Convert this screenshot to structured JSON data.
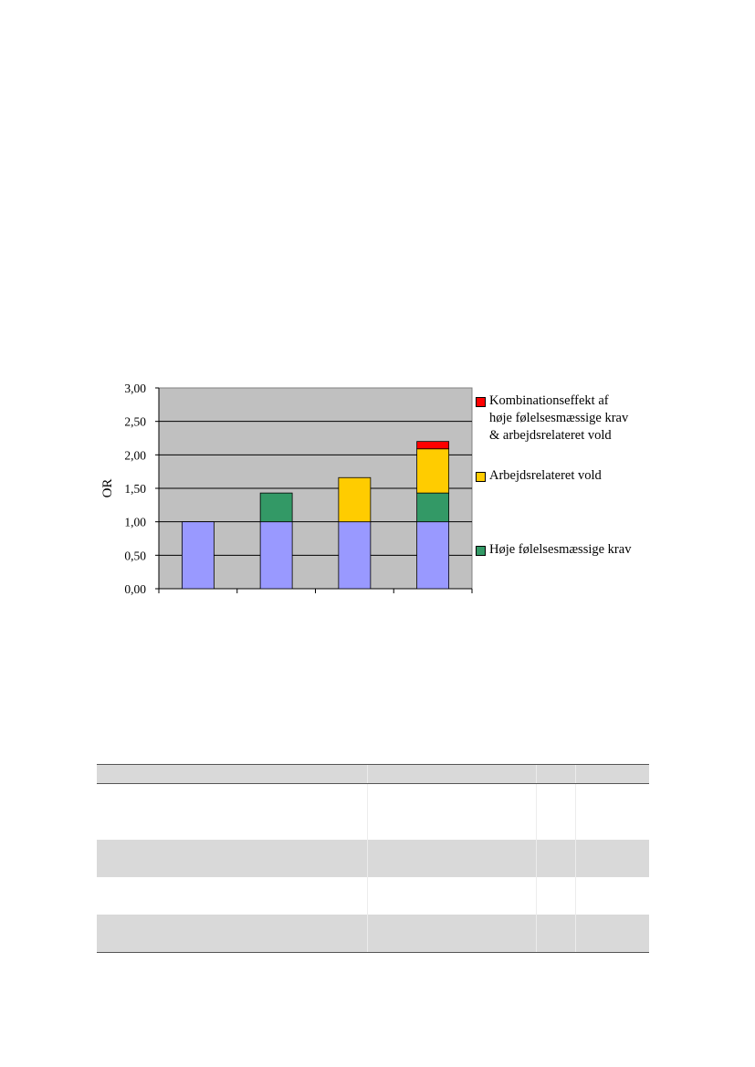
{
  "chart_data": {
    "type": "bar",
    "stacked": true,
    "categories": [
      "",
      "",
      "",
      ""
    ],
    "ylabel": "OR",
    "ylim": [
      0,
      3
    ],
    "yticks": [
      "0,00",
      "0,50",
      "1,00",
      "1,50",
      "2,00",
      "2,50",
      "3,00"
    ],
    "grid": true,
    "legend_position": "right",
    "series": [
      {
        "name": "",
        "color": "#9999ff",
        "values": [
          1.0,
          1.0,
          1.0,
          1.0
        ]
      },
      {
        "name": "Høje følelsesmæssige krav",
        "color": "#339966",
        "values": [
          0,
          0.43,
          0,
          0.43
        ]
      },
      {
        "name": "Arbejdsrelateret vold",
        "color": "#ffcc00",
        "values": [
          0,
          0,
          0.66,
          0.66
        ]
      },
      {
        "name": "Kombinationseffekt af\nhøje følelsesmæssige krav\n& arbejdsrelateret vold",
        "color": "#ff0000",
        "values": [
          0,
          0,
          0,
          0.11
        ]
      }
    ],
    "plot_background": "#c0c0c0"
  },
  "legend": {
    "items": [
      {
        "label": "Kombinationseffekt af\nhøje følelsesmæssige krav\n& arbejdsrelateret vold",
        "color": "#ff0000"
      },
      {
        "label": "Arbejdsrelateret vold",
        "color": "#ffcc00"
      },
      {
        "label": "Høje følelsesmæssige krav",
        "color": "#339966"
      }
    ]
  },
  "table": {
    "rows": [
      [
        "",
        "",
        "",
        ""
      ],
      [
        "",
        "",
        "",
        ""
      ],
      [
        "",
        "",
        "",
        ""
      ],
      [
        "",
        "",
        "",
        ""
      ],
      [
        "",
        "",
        "",
        ""
      ]
    ]
  }
}
